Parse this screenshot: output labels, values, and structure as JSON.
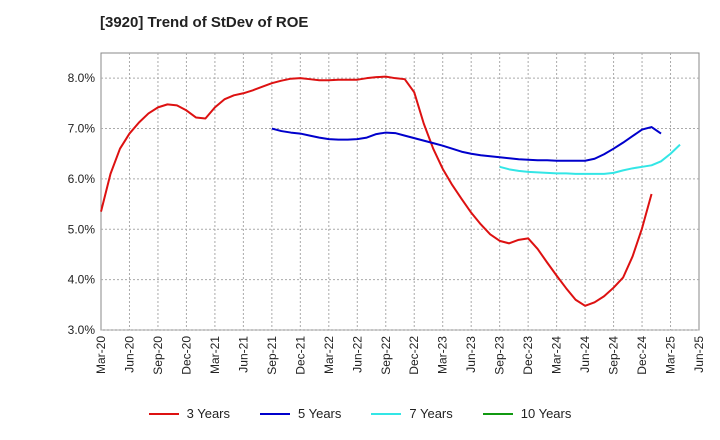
{
  "title": "[3920]  Trend of StDev of ROE",
  "colors": {
    "3y": "#dd1111",
    "5y": "#0000cc",
    "7y": "#33e6e6",
    "10y": "#119911",
    "grid": "#aaaaaa"
  },
  "chart_data": {
    "type": "line",
    "title": "[3920]  Trend of StDev of ROE",
    "xlabel": "",
    "ylabel": "",
    "ylim": [
      3.0,
      8.5
    ],
    "yticks": [
      "3.0%",
      "4.0%",
      "5.0%",
      "6.0%",
      "7.0%",
      "8.0%"
    ],
    "ytick_values": [
      3.0,
      4.0,
      5.0,
      6.0,
      7.0,
      8.0
    ],
    "xticks": [
      "Mar-20",
      "Jun-20",
      "Sep-20",
      "Dec-20",
      "Mar-21",
      "Jun-21",
      "Sep-21",
      "Dec-21",
      "Mar-22",
      "Jun-22",
      "Sep-22",
      "Dec-22",
      "Mar-23",
      "Jun-23",
      "Sep-23",
      "Dec-23",
      "Mar-24",
      "Jun-24",
      "Sep-24",
      "Dec-24",
      "Mar-25",
      "Jun-25"
    ],
    "grid": true,
    "legend": "bottom",
    "series": [
      {
        "name": "3 Years",
        "color": "#dd1111",
        "start": "Mar-20",
        "values": [
          5.35,
          6.1,
          6.6,
          6.9,
          7.12,
          7.3,
          7.42,
          7.48,
          7.46,
          7.36,
          7.22,
          7.2,
          7.42,
          7.58,
          7.66,
          7.7,
          7.76,
          7.83,
          7.9,
          7.95,
          7.99,
          8.0,
          7.98,
          7.96,
          7.96,
          7.97,
          7.97,
          7.97,
          8.0,
          8.02,
          8.03,
          8.0,
          7.98,
          7.72,
          7.1,
          6.6,
          6.2,
          5.88,
          5.6,
          5.33,
          5.1,
          4.9,
          4.77,
          4.72,
          4.79,
          4.82,
          4.61,
          4.34,
          4.08,
          3.83,
          3.6,
          3.48,
          3.55,
          3.67,
          3.84,
          4.04,
          4.46,
          5.02,
          5.7
        ]
      },
      {
        "name": "5 Years",
        "color": "#0000cc",
        "start": "Sep-21",
        "values": [
          7.0,
          6.95,
          6.92,
          6.9,
          6.86,
          6.82,
          6.79,
          6.78,
          6.78,
          6.79,
          6.82,
          6.89,
          6.92,
          6.91,
          6.86,
          6.81,
          6.76,
          6.71,
          6.66,
          6.6,
          6.54,
          6.5,
          6.47,
          6.45,
          6.43,
          6.41,
          6.39,
          6.38,
          6.37,
          6.37,
          6.36,
          6.36,
          6.36,
          6.36,
          6.4,
          6.49,
          6.6,
          6.72,
          6.85,
          6.98,
          7.03,
          6.9
        ]
      },
      {
        "name": "7 Years",
        "color": "#33e6e6",
        "start": "Sep-23",
        "values": [
          6.24,
          6.19,
          6.16,
          6.14,
          6.13,
          6.12,
          6.11,
          6.11,
          6.1,
          6.1,
          6.1,
          6.1,
          6.12,
          6.17,
          6.21,
          6.24,
          6.27,
          6.35,
          6.5,
          6.68
        ]
      },
      {
        "name": "10 Years",
        "color": "#119911",
        "start": "Sep-23",
        "values": []
      }
    ]
  }
}
